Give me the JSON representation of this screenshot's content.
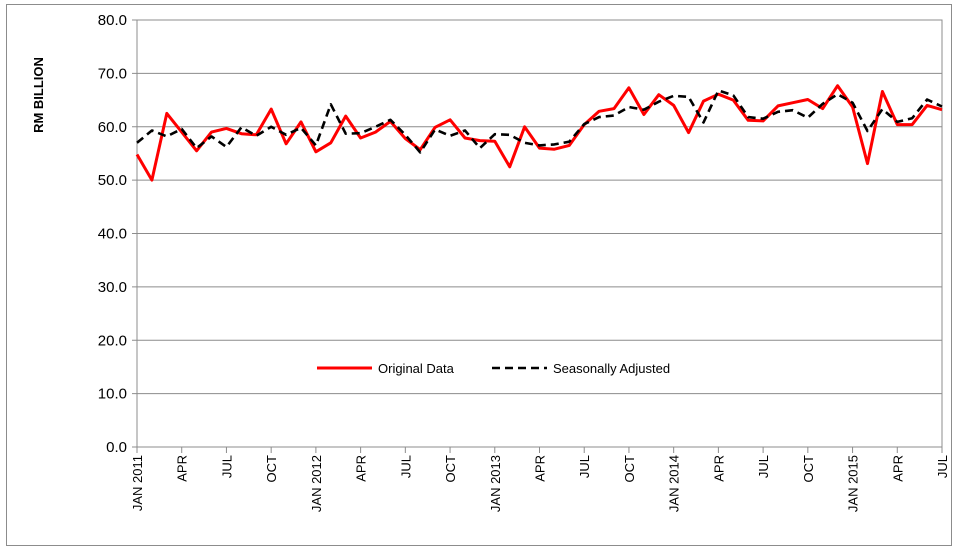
{
  "chart_data": {
    "type": "line",
    "title": "",
    "xlabel": "",
    "ylabel": "RM BILLION",
    "ylim": [
      0,
      80
    ],
    "yticks": [
      "0.0",
      "10.0",
      "20.0",
      "30.0",
      "40.0",
      "50.0",
      "60.0",
      "70.0",
      "80.0"
    ],
    "x_start": "JAN 2011",
    "x_end": "JUL 2015",
    "x_tick_labels": [
      {
        "index": 0,
        "label": "JAN 2011"
      },
      {
        "index": 3,
        "label": "APR"
      },
      {
        "index": 6,
        "label": "JUL"
      },
      {
        "index": 9,
        "label": "OCT"
      },
      {
        "index": 12,
        "label": "JAN 2012"
      },
      {
        "index": 15,
        "label": "APR"
      },
      {
        "index": 18,
        "label": "JUL"
      },
      {
        "index": 21,
        "label": "OCT"
      },
      {
        "index": 24,
        "label": "JAN 2013"
      },
      {
        "index": 27,
        "label": "APR"
      },
      {
        "index": 30,
        "label": "JUL"
      },
      {
        "index": 33,
        "label": "OCT"
      },
      {
        "index": 36,
        "label": "JAN 2014"
      },
      {
        "index": 39,
        "label": "APR"
      },
      {
        "index": 42,
        "label": "JUL"
      },
      {
        "index": 45,
        "label": "OCT"
      },
      {
        "index": 48,
        "label": "JAN 2015"
      },
      {
        "index": 51,
        "label": "APR"
      },
      {
        "index": 54,
        "label": "JUL"
      }
    ],
    "grid": true,
    "legend_position": "center",
    "series": [
      {
        "name": "Original Data",
        "color": "#ff0000",
        "style": "solid",
        "values": [
          54.8,
          50.0,
          62.5,
          59.0,
          55.5,
          59.0,
          59.7,
          58.7,
          58.5,
          63.3,
          56.8,
          60.9,
          55.3,
          57.0,
          62.0,
          57.9,
          59.0,
          61.0,
          57.8,
          55.7,
          59.9,
          61.3,
          57.9,
          57.4,
          57.3,
          52.5,
          60.0,
          56.0,
          55.8,
          56.5,
          60.4,
          62.9,
          63.4,
          67.3,
          62.3,
          66.0,
          64.0,
          58.9,
          64.8,
          66.1,
          65.0,
          61.2,
          61.1,
          63.9,
          64.5,
          65.1,
          63.4,
          67.7,
          63.7,
          53.1,
          66.6,
          60.4,
          60.4,
          64.0,
          63.2
        ]
      },
      {
        "name": "Seasonally Adjusted",
        "color": "#000000",
        "style": "dashed",
        "values": [
          57.0,
          59.3,
          58.2,
          59.6,
          56.0,
          58.2,
          56.2,
          59.9,
          58.3,
          60.0,
          58.5,
          59.8,
          56.5,
          64.2,
          58.7,
          58.8,
          60.0,
          61.3,
          58.5,
          55.2,
          59.5,
          58.3,
          59.3,
          56.0,
          58.6,
          58.5,
          57.0,
          56.5,
          56.7,
          57.2,
          60.5,
          61.8,
          62.1,
          63.7,
          63.2,
          64.7,
          65.8,
          65.6,
          60.8,
          66.8,
          65.9,
          61.8,
          61.5,
          62.8,
          63.1,
          61.7,
          64.3,
          66.1,
          64.5,
          59.2,
          63.3,
          60.9,
          61.6,
          65.1,
          63.8
        ]
      }
    ]
  }
}
